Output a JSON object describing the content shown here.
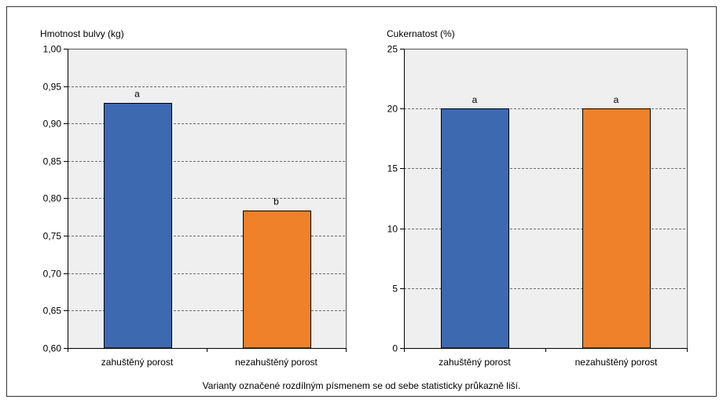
{
  "note": "Varianty označené rozdílným písmenem se od sebe statisticky průkazně liší.",
  "colors": {
    "blue": "#3d69b1",
    "orange": "#ee8129",
    "plot_bg": "#efefef",
    "frame": "#555555"
  },
  "chart_data": [
    {
      "type": "bar",
      "ylabel": "Hmotnost bulvy (kg)",
      "categories": [
        "zahuštěný porost",
        "nezahuštěný porost"
      ],
      "values": [
        0.928,
        0.784
      ],
      "significance": [
        "a",
        "b"
      ],
      "ylim": [
        0.6,
        1.0
      ],
      "yticks": [
        "0,60",
        "0,65",
        "0,70",
        "0,75",
        "0,80",
        "0,85",
        "0,90",
        "0,95",
        "1,00"
      ],
      "ytick_values": [
        0.6,
        0.65,
        0.7,
        0.75,
        0.8,
        0.85,
        0.9,
        0.95,
        1.0
      ],
      "grid": true,
      "bar_colors": [
        "#3d69b1",
        "#ee8129"
      ]
    },
    {
      "type": "bar",
      "ylabel": "Cukernatost (%)",
      "categories": [
        "zahuštěný porost",
        "nezahuštěný porost"
      ],
      "values": [
        20,
        20
      ],
      "significance": [
        "a",
        "a"
      ],
      "ylim": [
        0,
        25
      ],
      "yticks": [
        "0",
        "5",
        "10",
        "15",
        "20",
        "25"
      ],
      "ytick_values": [
        0,
        5,
        10,
        15,
        20,
        25
      ],
      "grid": true,
      "bar_colors": [
        "#3d69b1",
        "#ee8129"
      ]
    }
  ]
}
